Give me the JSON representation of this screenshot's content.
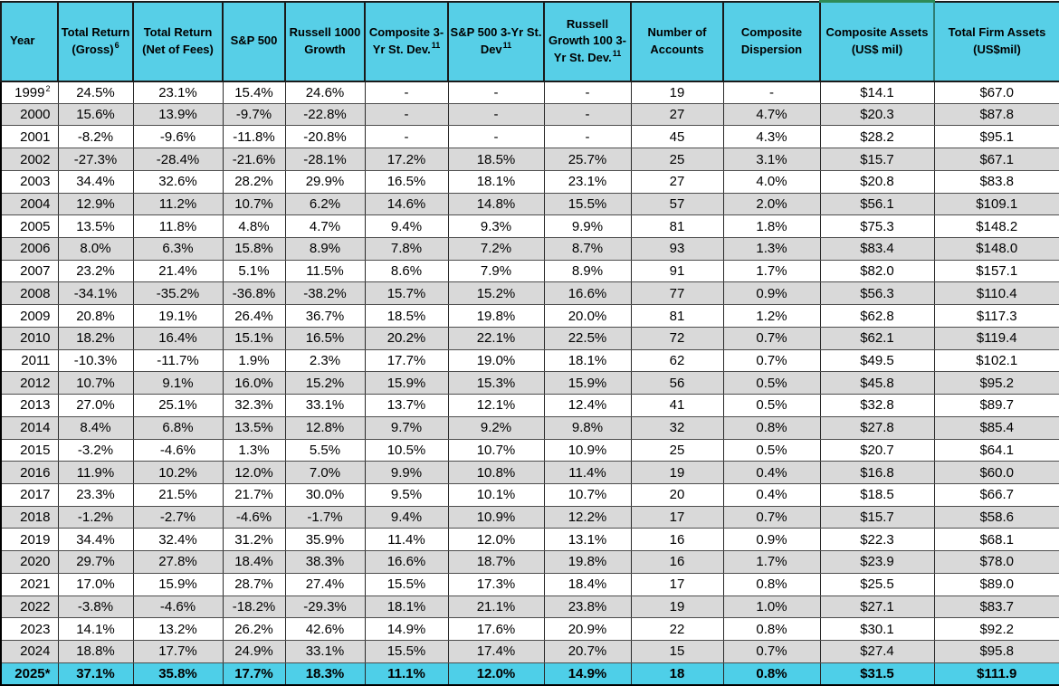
{
  "colors": {
    "header_bg": "#57CFE7",
    "stripe_bg": "#D9D9D9",
    "row_bg": "#FFFFFF",
    "highlight_bg": "#4ECFE8",
    "grid_border": "#1a1a1a",
    "selection_outline_top": "#2E8B57",
    "selection_outline_side": "#2F7D74",
    "text": "#000000"
  },
  "table": {
    "columns": [
      {
        "id": "year",
        "label": "Year",
        "sup": ""
      },
      {
        "id": "total-return-gross",
        "label": "Total Return (Gross)",
        "sup": "6"
      },
      {
        "id": "total-return-net",
        "label": "Total Return (Net of Fees)",
        "sup": ""
      },
      {
        "id": "sp500",
        "label": "S&P 500",
        "sup": ""
      },
      {
        "id": "russell-1000-growth",
        "label": "Russell 1000 Growth",
        "sup": ""
      },
      {
        "id": "composite-3yr-st-dev",
        "label": "Composite 3-Yr St. Dev.",
        "sup": "11"
      },
      {
        "id": "sp500-3yr-st-dev",
        "label": "S&P 500 3-Yr St. Dev",
        "sup": "11"
      },
      {
        "id": "russell-growth-100-3yr-st-dev",
        "label": "Russell Growth 100 3-Yr St. Dev.",
        "sup": "11"
      },
      {
        "id": "number-of-accounts",
        "label": "Number of Accounts",
        "sup": ""
      },
      {
        "id": "composite-dispersion",
        "label": "Composite Dispersion",
        "sup": ""
      },
      {
        "id": "composite-assets",
        "label": "Composite Assets (US$ mil)",
        "sup": ""
      },
      {
        "id": "total-firm-assets",
        "label": "Total Firm Assets (US$mil)",
        "sup": ""
      }
    ],
    "rows": [
      {
        "year": "1999",
        "year_sup": "2",
        "values": [
          "24.5%",
          "23.1%",
          "15.4%",
          "24.6%",
          "-",
          "-",
          "-",
          "19",
          "-",
          "$14.1",
          "$67.0"
        ]
      },
      {
        "year": "2000",
        "values": [
          "15.6%",
          "13.9%",
          "-9.7%",
          "-22.8%",
          "-",
          "-",
          "-",
          "27",
          "4.7%",
          "$20.3",
          "$87.8"
        ]
      },
      {
        "year": "2001",
        "values": [
          "-8.2%",
          "-9.6%",
          "-11.8%",
          "-20.8%",
          "-",
          "-",
          "-",
          "45",
          "4.3%",
          "$28.2",
          "$95.1"
        ]
      },
      {
        "year": "2002",
        "values": [
          "-27.3%",
          "-28.4%",
          "-21.6%",
          "-28.1%",
          "17.2%",
          "18.5%",
          "25.7%",
          "25",
          "3.1%",
          "$15.7",
          "$67.1"
        ]
      },
      {
        "year": "2003",
        "values": [
          "34.4%",
          "32.6%",
          "28.2%",
          "29.9%",
          "16.5%",
          "18.1%",
          "23.1%",
          "27",
          "4.0%",
          "$20.8",
          "$83.8"
        ]
      },
      {
        "year": "2004",
        "values": [
          "12.9%",
          "11.2%",
          "10.7%",
          "6.2%",
          "14.6%",
          "14.8%",
          "15.5%",
          "57",
          "2.0%",
          "$56.1",
          "$109.1"
        ]
      },
      {
        "year": "2005",
        "values": [
          "13.5%",
          "11.8%",
          "4.8%",
          "4.7%",
          "9.4%",
          "9.3%",
          "9.9%",
          "81",
          "1.8%",
          "$75.3",
          "$148.2"
        ]
      },
      {
        "year": "2006",
        "values": [
          "8.0%",
          "6.3%",
          "15.8%",
          "8.9%",
          "7.8%",
          "7.2%",
          "8.7%",
          "93",
          "1.3%",
          "$83.4",
          "$148.0"
        ]
      },
      {
        "year": "2007",
        "values": [
          "23.2%",
          "21.4%",
          "5.1%",
          "11.5%",
          "8.6%",
          "7.9%",
          "8.9%",
          "91",
          "1.7%",
          "$82.0",
          "$157.1"
        ]
      },
      {
        "year": "2008",
        "values": [
          "-34.1%",
          "-35.2%",
          "-36.8%",
          "-38.2%",
          "15.7%",
          "15.2%",
          "16.6%",
          "77",
          "0.9%",
          "$56.3",
          "$110.4"
        ]
      },
      {
        "year": "2009",
        "values": [
          "20.8%",
          "19.1%",
          "26.4%",
          "36.7%",
          "18.5%",
          "19.8%",
          "20.0%",
          "81",
          "1.2%",
          "$62.8",
          "$117.3"
        ]
      },
      {
        "year": "2010",
        "values": [
          "18.2%",
          "16.4%",
          "15.1%",
          "16.5%",
          "20.2%",
          "22.1%",
          "22.5%",
          "72",
          "0.7%",
          "$62.1",
          "$119.4"
        ]
      },
      {
        "year": "2011",
        "values": [
          "-10.3%",
          "-11.7%",
          "1.9%",
          "2.3%",
          "17.7%",
          "19.0%",
          "18.1%",
          "62",
          "0.7%",
          "$49.5",
          "$102.1"
        ]
      },
      {
        "year": "2012",
        "values": [
          "10.7%",
          "9.1%",
          "16.0%",
          "15.2%",
          "15.9%",
          "15.3%",
          "15.9%",
          "56",
          "0.5%",
          "$45.8",
          "$95.2"
        ]
      },
      {
        "year": "2013",
        "values": [
          "27.0%",
          "25.1%",
          "32.3%",
          "33.1%",
          "13.7%",
          "12.1%",
          "12.4%",
          "41",
          "0.5%",
          "$32.8",
          "$89.7"
        ]
      },
      {
        "year": "2014",
        "values": [
          "8.4%",
          "6.8%",
          "13.5%",
          "12.8%",
          "9.7%",
          "9.2%",
          "9.8%",
          "32",
          "0.8%",
          "$27.8",
          "$85.4"
        ]
      },
      {
        "year": "2015",
        "values": [
          "-3.2%",
          "-4.6%",
          "1.3%",
          "5.5%",
          "10.5%",
          "10.7%",
          "10.9%",
          "25",
          "0.5%",
          "$20.7",
          "$64.1"
        ]
      },
      {
        "year": "2016",
        "values": [
          "11.9%",
          "10.2%",
          "12.0%",
          "7.0%",
          "9.9%",
          "10.8%",
          "11.4%",
          "19",
          "0.4%",
          "$16.8",
          "$60.0"
        ]
      },
      {
        "year": "2017",
        "values": [
          "23.3%",
          "21.5%",
          "21.7%",
          "30.0%",
          "9.5%",
          "10.1%",
          "10.7%",
          "20",
          "0.4%",
          "$18.5",
          "$66.7"
        ]
      },
      {
        "year": "2018",
        "values": [
          "-1.2%",
          "-2.7%",
          "-4.6%",
          "-1.7%",
          "9.4%",
          "10.9%",
          "12.2%",
          "17",
          "0.7%",
          "$15.7",
          "$58.6"
        ]
      },
      {
        "year": "2019",
        "values": [
          "34.4%",
          "32.4%",
          "31.2%",
          "35.9%",
          "11.4%",
          "12.0%",
          "13.1%",
          "16",
          "0.9%",
          "$22.3",
          "$68.1"
        ]
      },
      {
        "year": "2020",
        "values": [
          "29.7%",
          "27.8%",
          "18.4%",
          "38.3%",
          "16.6%",
          "18.7%",
          "19.8%",
          "16",
          "1.7%",
          "$23.9",
          "$78.0"
        ]
      },
      {
        "year": "2021",
        "values": [
          "17.0%",
          "15.9%",
          "28.7%",
          "27.4%",
          "15.5%",
          "17.3%",
          "18.4%",
          "17",
          "0.8%",
          "$25.5",
          "$89.0"
        ]
      },
      {
        "year": "2022",
        "values": [
          "-3.8%",
          "-4.6%",
          "-18.2%",
          "-29.3%",
          "18.1%",
          "21.1%",
          "23.8%",
          "19",
          "1.0%",
          "$27.1",
          "$83.7"
        ]
      },
      {
        "year": "2023",
        "values": [
          "14.1%",
          "13.2%",
          "26.2%",
          "42.6%",
          "14.9%",
          "17.6%",
          "20.9%",
          "22",
          "0.8%",
          "$30.1",
          "$92.2"
        ]
      },
      {
        "year": "2024",
        "values": [
          "18.8%",
          "17.7%",
          "24.9%",
          "33.1%",
          "15.5%",
          "17.4%",
          "20.7%",
          "15",
          "0.7%",
          "$27.4",
          "$95.8"
        ]
      },
      {
        "year": "2025*",
        "highlight": true,
        "values": [
          "37.1%",
          "35.8%",
          "17.7%",
          "18.3%",
          "11.1%",
          "12.0%",
          "14.9%",
          "18",
          "0.8%",
          "$31.5",
          "$111.9"
        ]
      }
    ]
  }
}
